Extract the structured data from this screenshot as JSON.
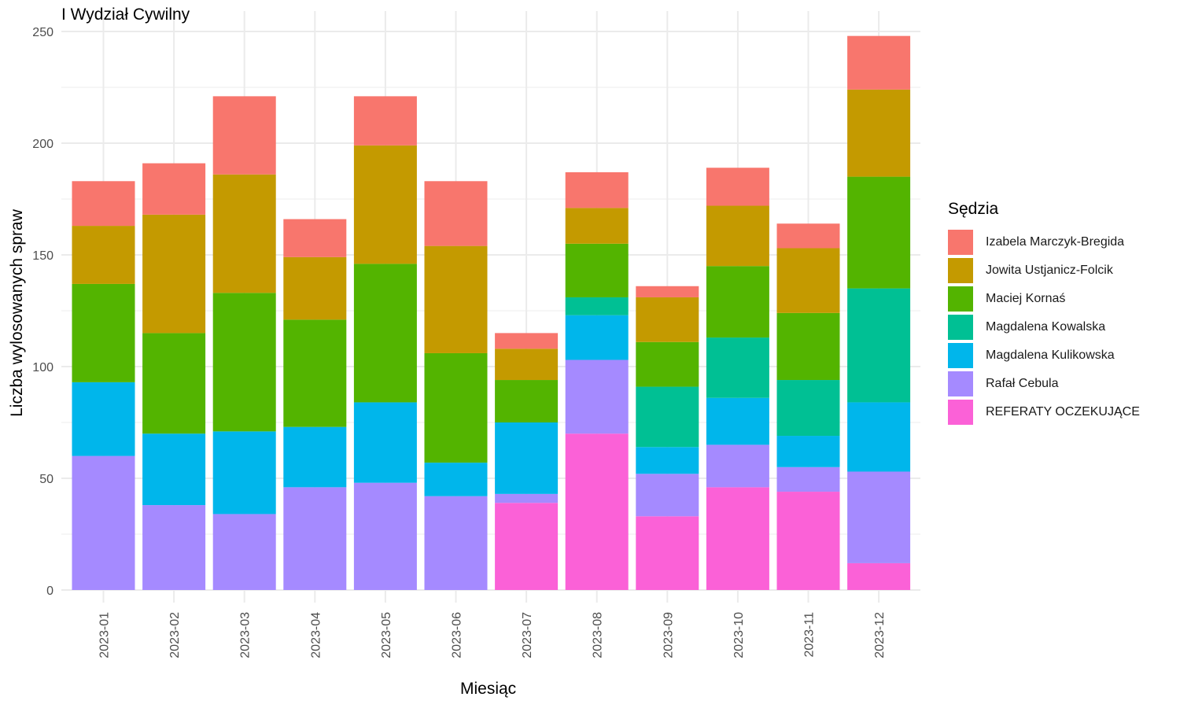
{
  "chart_data": {
    "type": "bar",
    "stacked": true,
    "title": "I Wydział Cywilny",
    "xlabel": "Miesiąc",
    "ylabel": "Liczba wylosowanych spraw",
    "ylim": [
      0,
      250
    ],
    "yticks": [
      0,
      50,
      100,
      150,
      200,
      250
    ],
    "grid": true,
    "legend_title": "Sędzia",
    "legend_position": "right",
    "categories": [
      "2023-01",
      "2023-02",
      "2023-03",
      "2023-04",
      "2023-05",
      "2023-06",
      "2023-07",
      "2023-08",
      "2023-09",
      "2023-10",
      "2023-11",
      "2023-12"
    ],
    "series": [
      {
        "name": "Izabela Marczyk-Bregida",
        "color": "#F8766D",
        "values": [
          20,
          23,
          35,
          17,
          22,
          29,
          7,
          16,
          5,
          17,
          11,
          24
        ]
      },
      {
        "name": "Jowita Ustjanicz-Folcik",
        "color": "#C49A00",
        "values": [
          26,
          53,
          53,
          28,
          53,
          48,
          14,
          16,
          20,
          27,
          29,
          39
        ]
      },
      {
        "name": "Maciej Kornaś",
        "color": "#53B400",
        "values": [
          44,
          45,
          62,
          48,
          62,
          49,
          19,
          24,
          20,
          32,
          30,
          50
        ]
      },
      {
        "name": "Magdalena Kowalska",
        "color": "#00C094",
        "values": [
          0,
          0,
          0,
          0,
          0,
          0,
          0,
          8,
          27,
          27,
          25,
          51
        ]
      },
      {
        "name": "Magdalena Kulikowska",
        "color": "#00B6EB",
        "values": [
          33,
          32,
          37,
          27,
          36,
          15,
          32,
          20,
          12,
          21,
          14,
          31
        ]
      },
      {
        "name": "Rafał Cebula",
        "color": "#A58AFF",
        "values": [
          60,
          38,
          34,
          46,
          48,
          42,
          4,
          33,
          19,
          19,
          11,
          41
        ]
      },
      {
        "name": "REFERATY OCZEKUJĄCE",
        "color": "#FB61D7",
        "values": [
          0,
          0,
          0,
          0,
          0,
          0,
          39,
          70,
          33,
          46,
          44,
          12
        ]
      }
    ]
  }
}
